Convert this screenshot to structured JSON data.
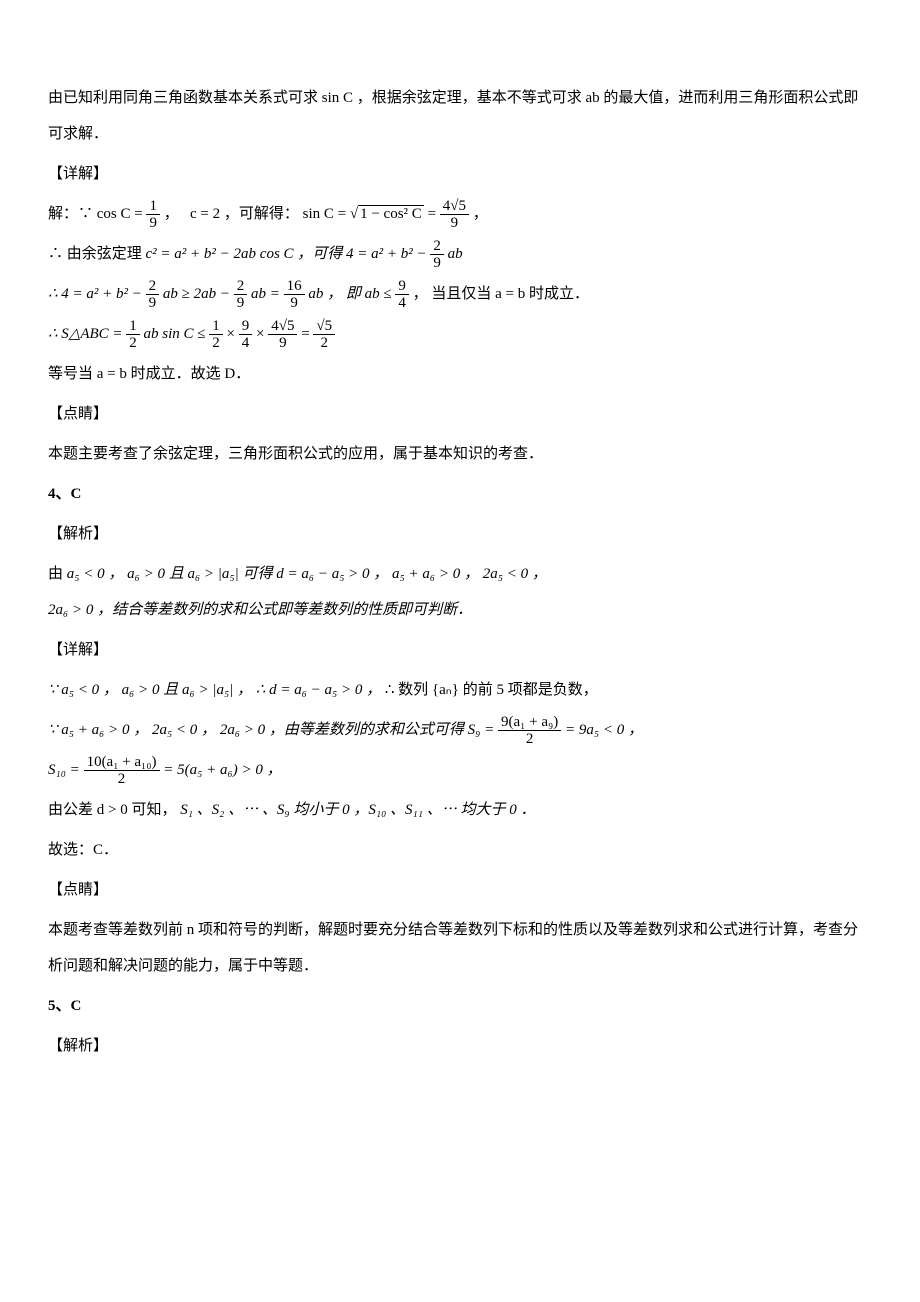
{
  "p1": "由已知利用同角三角函数基本关系式可求 sin C ，根据余弦定理，基本不等式可求 ab 的最大值，进而利用三角形面积公式即可求解．",
  "hdr_detail": "【详解】",
  "p2a": "解：∵",
  "p2b": "cos C =",
  "p2c": "，",
  "p2d": "c = 2 ，可解得：",
  "p2e": "sin C =",
  "p2f": "，",
  "p3a": "∴ 由余弦定理",
  "p3b": "c² = a² + b² − 2ab cos C ，可得",
  "p3c": "4 = a² + b² −",
  "p3d": "ab",
  "p4a": "∴ 4 = a² + b² −",
  "p4b": "ab ≥ 2ab −",
  "p4c": "ab =",
  "p4d": "ab ， 即 ab ≤",
  "p4e": "， 当且仅当 a = b 时成立．",
  "p5a": "∴ S△ABC =",
  "p5b": "ab sin C ≤",
  "p5c": "×",
  "p5d": "×",
  "p5e": "=",
  "p6": "等号当 a = b 时成立．故选 D．",
  "hdr_dianjing": "【点睛】",
  "p7": "本题主要考查了余弦定理，三角形面积公式的应用，属于基本知识的考查．",
  "q4": "4、C",
  "hdr_jiexi": "【解析】",
  "p8a": "由",
  "p8b": "a₅ < 0 ，",
  "p8c": "a₆ > 0 且 a₆ > |a₅| 可得 d = a₆ − a₅ > 0 ，",
  "p8d": "a₅ + a₆ > 0 ，",
  "p8e": "2a₅ < 0 ，",
  "p8f": "2a₆ > 0 ，结合等差数列的求和公式即等差数列的性质即可判断．",
  "p9a": "∵ a₅ < 0 ，",
  "p9b": "a₆ > 0 且 a₆ > |a₅| ，",
  "p9c": "∴ d = a₆ − a₅ > 0 ，",
  "p9d": "∴ 数列 {aₙ} 的前 5 项都是负数，",
  "p10a": "∵ a₅ + a₆ > 0 ，",
  "p10b": "2a₅ < 0 ，",
  "p10c": "2a₆ > 0 ，由等差数列的求和公式可得 S₉ =",
  "p10d": "= 9a₅ < 0 ，",
  "p11a": "S₁₀ =",
  "p11b": "= 5(a₅ + a₆) > 0 ，",
  "p12a": "由公差 d > 0 可知，",
  "p12b": "S₁ 、S₂ 、⋯ 、S₉ 均小于 0 ，S₁₀ 、S₁₁ 、⋯ 均大于 0 ．",
  "p13": "故选：C．",
  "p14": "本题考查等差数列前 n 项和符号的判断，解题时要充分结合等差数列下标和的性质以及等差数列求和公式进行计算，考查分析问题和解决问题的能力，属于中等题．",
  "q5": "5、C",
  "frac_1_9_n": "1",
  "frac_1_9_d": "9",
  "frac_4r5_9_n": "4√5",
  "frac_4r5_9_d": "9",
  "frac_2_9_n": "2",
  "frac_2_9_d": "9",
  "frac_16_9_n": "16",
  "frac_16_9_d": "9",
  "frac_9_4_n": "9",
  "frac_9_4_d": "4",
  "frac_1_2_n": "1",
  "frac_1_2_d": "2",
  "frac_r5_2_n": "√5",
  "frac_r5_2_d": "2",
  "sqrt_body": "1 − cos² C",
  "frac_9sum_n": "9(a₁ + a₉)",
  "frac_9sum_d": "2",
  "frac_10sum_n": "10(a₁ + a₁₀)",
  "frac_10sum_d": "2"
}
